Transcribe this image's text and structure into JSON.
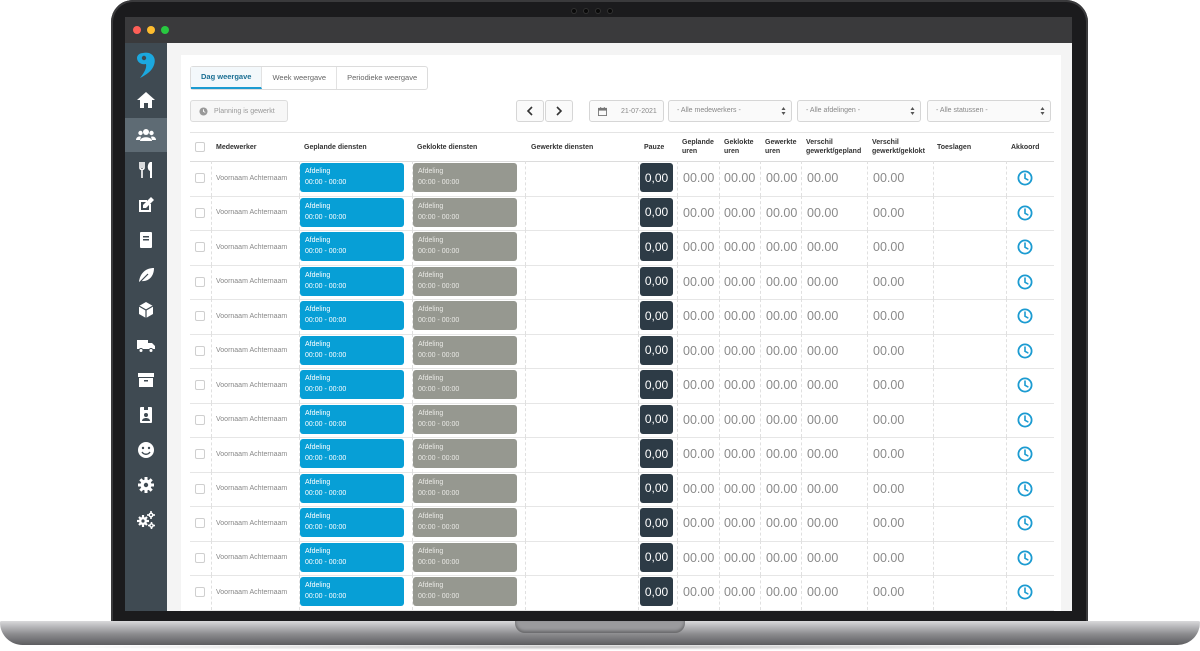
{
  "tabs": [
    {
      "label": "Dag weergave",
      "active": true
    },
    {
      "label": "Week weergave",
      "active": false
    },
    {
      "label": "Periodieke weergave",
      "active": false
    }
  ],
  "toolbar": {
    "status_button": "Planning is gewerkt",
    "date": "21-07-2021",
    "employee_filter": "- Alle medewerkers -",
    "department_filter": "- Alle afdelingen -",
    "status_filter": "- Alle statussen -"
  },
  "sidebar": {
    "icons": [
      "home-icon",
      "users-icon",
      "utensils-icon",
      "edit-icon",
      "book-icon",
      "leaf-icon",
      "cube-icon",
      "truck-icon",
      "archive-icon",
      "id-card-icon",
      "smile-icon",
      "gear-icon",
      "gears-icon"
    ],
    "active": "users-icon"
  },
  "table": {
    "headers": {
      "employee": "Medewerker",
      "planned_shifts": "Geplande diensten",
      "clocked_shifts": "Geklokte diensten",
      "worked_shifts": "Gewerkte diensten",
      "pause": "Pauze",
      "planned_hours_1": "Geplande",
      "planned_hours_2": "uren",
      "clocked_hours_1": "Geklokte",
      "clocked_hours_2": "uren",
      "worked_hours_1": "Gewerkte",
      "worked_hours_2": "uren",
      "diff_plan_1": "Verschil",
      "diff_plan_2": "gewerkt/gepland",
      "diff_clock_1": "Verschil",
      "diff_clock_2": "gewerkt/geklokt",
      "allowances": "Toeslagen",
      "approval": "Akkoord"
    },
    "rows": [
      {
        "name": "Voornaam Achternaam",
        "plan_dept": "Afdeling",
        "plan_time": "00:00 - 00:00",
        "clock_dept": "Afdeling",
        "clock_time": "00:00 - 00:00",
        "pause": "0,00",
        "planned": "00.00",
        "clocked": "00.00",
        "worked": "00.00",
        "diff_plan": "00.00",
        "diff_clock": "00.00"
      },
      {
        "name": "Voornaam Achternaam",
        "plan_dept": "Afdeling",
        "plan_time": "00:00 - 00:00",
        "clock_dept": "Afdeling",
        "clock_time": "00:00 - 00:00",
        "pause": "0,00",
        "planned": "00.00",
        "clocked": "00.00",
        "worked": "00.00",
        "diff_plan": "00.00",
        "diff_clock": "00.00"
      },
      {
        "name": "Voornaam Achternaam",
        "plan_dept": "Afdeling",
        "plan_time": "00:00 - 00:00",
        "clock_dept": "Afdeling",
        "clock_time": "00:00 - 00:00",
        "pause": "0,00",
        "planned": "00.00",
        "clocked": "00.00",
        "worked": "00.00",
        "diff_plan": "00.00",
        "diff_clock": "00.00"
      },
      {
        "name": "Voornaam Achternaam",
        "plan_dept": "Afdeling",
        "plan_time": "00:00 - 00:00",
        "clock_dept": "Afdeling",
        "clock_time": "00:00 - 00:00",
        "pause": "0,00",
        "planned": "00.00",
        "clocked": "00.00",
        "worked": "00.00",
        "diff_plan": "00.00",
        "diff_clock": "00.00"
      },
      {
        "name": "Voornaam Achternaam",
        "plan_dept": "Afdeling",
        "plan_time": "00:00 - 00:00",
        "clock_dept": "Afdeling",
        "clock_time": "00:00 - 00:00",
        "pause": "0,00",
        "planned": "00.00",
        "clocked": "00.00",
        "worked": "00.00",
        "diff_plan": "00.00",
        "diff_clock": "00.00"
      },
      {
        "name": "Voornaam Achternaam",
        "plan_dept": "Afdeling",
        "plan_time": "00:00 - 00:00",
        "clock_dept": "Afdeling",
        "clock_time": "00:00 - 00:00",
        "pause": "0,00",
        "planned": "00.00",
        "clocked": "00.00",
        "worked": "00.00",
        "diff_plan": "00.00",
        "diff_clock": "00.00"
      },
      {
        "name": "Voornaam Achternaam",
        "plan_dept": "Afdeling",
        "plan_time": "00:00 - 00:00",
        "clock_dept": "Afdeling",
        "clock_time": "00:00 - 00:00",
        "pause": "0,00",
        "planned": "00.00",
        "clocked": "00.00",
        "worked": "00.00",
        "diff_plan": "00.00",
        "diff_clock": "00.00"
      },
      {
        "name": "Voornaam Achternaam",
        "plan_dept": "Afdeling",
        "plan_time": "00:00 - 00:00",
        "clock_dept": "Afdeling",
        "clock_time": "00:00 - 00:00",
        "pause": "0,00",
        "planned": "00.00",
        "clocked": "00.00",
        "worked": "00.00",
        "diff_plan": "00.00",
        "diff_clock": "00.00"
      },
      {
        "name": "Voornaam Achternaam",
        "plan_dept": "Afdeling",
        "plan_time": "00:00 - 00:00",
        "clock_dept": "Afdeling",
        "clock_time": "00:00 - 00:00",
        "pause": "0,00",
        "planned": "00.00",
        "clocked": "00.00",
        "worked": "00.00",
        "diff_plan": "00.00",
        "diff_clock": "00.00"
      },
      {
        "name": "Voornaam Achternaam",
        "plan_dept": "Afdeling",
        "plan_time": "00:00 - 00:00",
        "clock_dept": "Afdeling",
        "clock_time": "00:00 - 00:00",
        "pause": "0,00",
        "planned": "00.00",
        "clocked": "00.00",
        "worked": "00.00",
        "diff_plan": "00.00",
        "diff_clock": "00.00"
      },
      {
        "name": "Voornaam Achternaam",
        "plan_dept": "Afdeling",
        "plan_time": "00:00 - 00:00",
        "clock_dept": "Afdeling",
        "clock_time": "00:00 - 00:00",
        "pause": "0,00",
        "planned": "00.00",
        "clocked": "00.00",
        "worked": "00.00",
        "diff_plan": "00.00",
        "diff_clock": "00.00"
      },
      {
        "name": "Voornaam Achternaam",
        "plan_dept": "Afdeling",
        "plan_time": "00:00 - 00:00",
        "clock_dept": "Afdeling",
        "clock_time": "00:00 - 00:00",
        "pause": "0,00",
        "planned": "00.00",
        "clocked": "00.00",
        "worked": "00.00",
        "diff_plan": "00.00",
        "diff_clock": "00.00"
      },
      {
        "name": "Voornaam Achternaam",
        "plan_dept": "Afdeling",
        "plan_time": "00:00 - 00:00",
        "clock_dept": "Afdeling",
        "clock_time": "00:00 - 00:00",
        "pause": "0,00",
        "planned": "00.00",
        "clocked": "00.00",
        "worked": "00.00",
        "diff_plan": "00.00",
        "diff_clock": "00.00"
      }
    ]
  },
  "colors": {
    "accent": "#079fd6",
    "clocked_shift": "#969890",
    "pause_bg": "#2d3b46",
    "sidebar_bg": "#3f4a52",
    "clock_icon": "#1b9bd1"
  }
}
